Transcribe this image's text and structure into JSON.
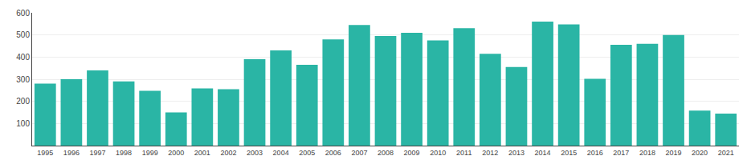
{
  "chart_data": {
    "type": "bar",
    "categories": [
      "1995",
      "1996",
      "1997",
      "1998",
      "1999",
      "2000",
      "2001",
      "2002",
      "2003",
      "2004",
      "2005",
      "2006",
      "2007",
      "2008",
      "2009",
      "2010",
      "2011",
      "2012",
      "2013",
      "2014",
      "2015",
      "2016",
      "2017",
      "2018",
      "2019",
      "2020",
      "2021"
    ],
    "values": [
      280,
      300,
      340,
      290,
      248,
      150,
      258,
      255,
      390,
      430,
      365,
      480,
      545,
      495,
      510,
      475,
      530,
      415,
      355,
      560,
      548,
      302,
      455,
      460,
      500,
      158,
      145
    ],
    "color": "#2ab5a5",
    "ylim": [
      0,
      600
    ],
    "yticks": [
      100,
      200,
      300,
      400,
      500,
      600
    ],
    "grid": true
  }
}
